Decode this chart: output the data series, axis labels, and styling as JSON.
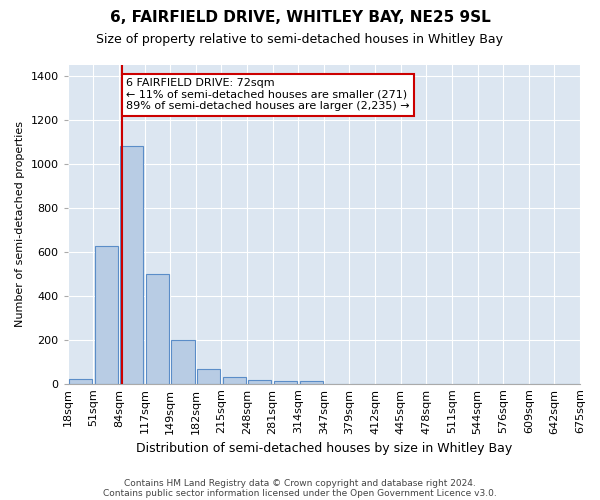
{
  "title": "6, FAIRFIELD DRIVE, WHITLEY BAY, NE25 9SL",
  "subtitle": "Size of property relative to semi-detached houses in Whitley Bay",
  "xlabel": "Distribution of semi-detached houses by size in Whitley Bay",
  "ylabel": "Number of semi-detached properties",
  "footer1": "Contains HM Land Registry data © Crown copyright and database right 2024.",
  "footer2": "Contains public sector information licensed under the Open Government Licence v3.0.",
  "annotation_title": "6 FAIRFIELD DRIVE: 72sqm",
  "annotation_line1": "← 11% of semi-detached houses are smaller (271)",
  "annotation_line2": "89% of semi-detached houses are larger (2,235) →",
  "property_size": 72,
  "bin_labels": [
    "18sqm",
    "51sqm",
    "84sqm",
    "117sqm",
    "149sqm",
    "182sqm",
    "215sqm",
    "248sqm",
    "281sqm",
    "314sqm",
    "347sqm",
    "379sqm",
    "412sqm",
    "445sqm",
    "478sqm",
    "511sqm",
    "544sqm",
    "576sqm",
    "609sqm",
    "642sqm",
    "675sqm"
  ],
  "bar_heights": [
    22,
    625,
    1080,
    500,
    200,
    68,
    30,
    18,
    13,
    10,
    0,
    0,
    0,
    0,
    0,
    0,
    0,
    0,
    0,
    0
  ],
  "bar_color": "#b8cce4",
  "bar_edgecolor": "#5b8dc8",
  "redline_color": "#cc0000",
  "annotation_box_facecolor": "#ffffff",
  "annotation_box_edgecolor": "#cc0000",
  "bg_color": "#dce6f1",
  "fig_bg_color": "#ffffff",
  "ylim": [
    0,
    1450
  ],
  "yticks": [
    0,
    200,
    400,
    600,
    800,
    1000,
    1200,
    1400
  ],
  "title_fontsize": 11,
  "subtitle_fontsize": 9,
  "xlabel_fontsize": 9,
  "ylabel_fontsize": 8,
  "tick_fontsize": 8,
  "footer_fontsize": 6.5,
  "annotation_fontsize": 8
}
